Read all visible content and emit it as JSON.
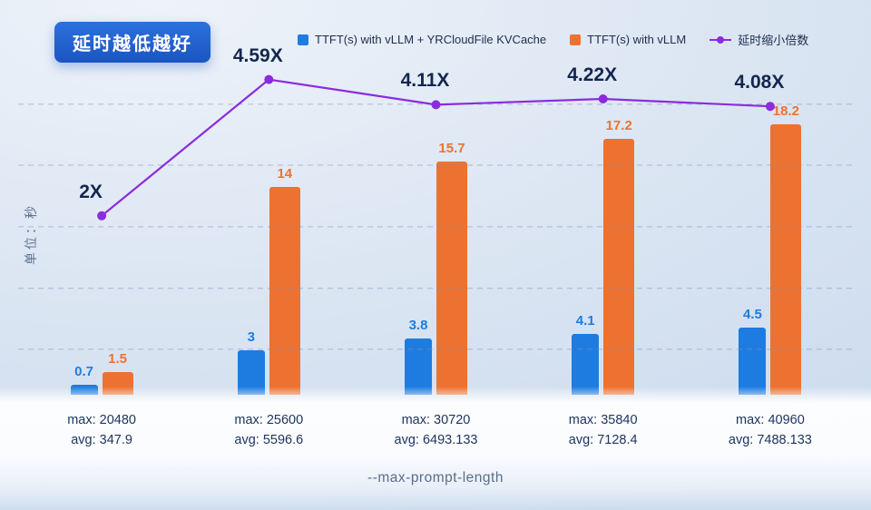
{
  "badge": "延时越低越好",
  "ylabel": "单位：秒",
  "xlabel": "--max-prompt-length",
  "legend": [
    {
      "label": "TTFT(s) with vLLM + YRCloudFile KVCache",
      "color": "#1e7ce0",
      "swatch": "square"
    },
    {
      "label": "TTFT(s) with vLLM",
      "color": "#ed7231",
      "swatch": "square"
    },
    {
      "label": "延时缩小倍数",
      "color": "#8b2be0",
      "swatch": "line-dot"
    }
  ],
  "colors": {
    "bar_kvcache": "#1e7ce0",
    "bar_vllm": "#ed7231",
    "multiplier_line": "#8b2be0",
    "badge_blue": "#1d5ecb",
    "multiplier_text": "#13264e",
    "category_text": "#1f3560"
  },
  "chart_data": {
    "type": "bar",
    "title": "",
    "xlabel": "--max-prompt-length",
    "ylabel": "单位：秒",
    "grid": "dashed-horizontal",
    "legend_position": "top",
    "ylim": [
      0,
      23
    ],
    "line_ylim": [
      -1.4,
      5.1
    ],
    "categories": [
      {
        "max_label": "max: 20480",
        "avg_label": "avg: 347.9"
      },
      {
        "max_label": "max: 25600",
        "avg_label": "avg: 5596.6"
      },
      {
        "max_label": "max: 30720",
        "avg_label": "avg: 6493.133"
      },
      {
        "max_label": "max: 35840",
        "avg_label": "avg: 7128.4"
      },
      {
        "max_label": "max: 40960",
        "avg_label": "avg: 7488.133"
      }
    ],
    "series": [
      {
        "name": "TTFT(s) with vLLM + YRCloudFile KVCache",
        "kind": "bar",
        "color": "#1e7ce0",
        "values": [
          0.7,
          3,
          3.8,
          4.1,
          4.5
        ],
        "labels": [
          "0.7",
          "3",
          "3.8",
          "4.1",
          "4.5"
        ]
      },
      {
        "name": "TTFT(s) with vLLM",
        "kind": "bar",
        "color": "#ed7231",
        "values": [
          1.5,
          14,
          15.7,
          17.2,
          18.2
        ],
        "labels": [
          "1.5",
          "14",
          "15.7",
          "17.2",
          "18.2"
        ]
      },
      {
        "name": "延时缩小倍数",
        "kind": "line",
        "color": "#8b2be0",
        "values": [
          2,
          4.59,
          4.11,
          4.22,
          4.08
        ],
        "labels": [
          "2X",
          "4.59X",
          "4.11X",
          "4.22X",
          "4.08X"
        ]
      }
    ]
  }
}
